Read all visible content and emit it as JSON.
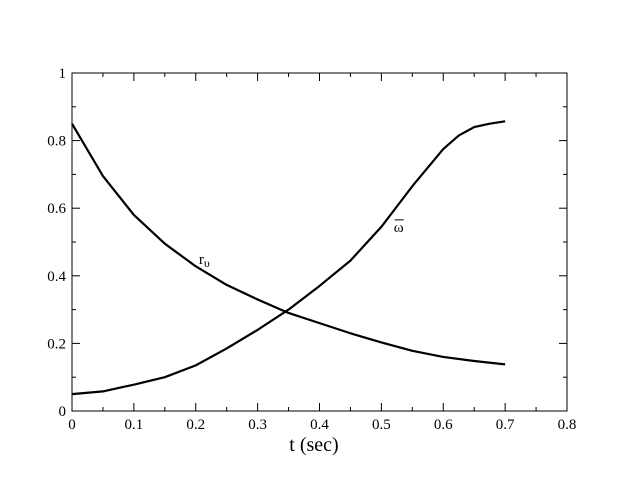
{
  "chart_data": {
    "type": "line",
    "xlabel": "t  (sec)",
    "ylabel": "",
    "xlim": [
      0,
      0.8
    ],
    "ylim": [
      0,
      1
    ],
    "xticks": [
      "0",
      "0.1",
      "0.2",
      "0.3",
      "0.4",
      "0.5",
      "0.6",
      "0.7",
      "0.8"
    ],
    "yticks": [
      "0",
      "0.2",
      "0.4",
      "0.6",
      "0.8",
      "1"
    ],
    "grid": false,
    "series": [
      {
        "x": [
          0,
          0.05,
          0.1,
          0.15,
          0.2,
          0.25,
          0.3,
          0.35,
          0.4,
          0.45,
          0.5,
          0.55,
          0.6,
          0.65,
          0.7
        ],
        "y": [
          0.85,
          0.695,
          0.58,
          0.495,
          0.428,
          0.373,
          0.33,
          0.29,
          0.26,
          0.23,
          0.203,
          0.178,
          0.16,
          0.148,
          0.138
        ]
      },
      {
        "x": [
          0,
          0.05,
          0.1,
          0.15,
          0.2,
          0.25,
          0.3,
          0.35,
          0.4,
          0.45,
          0.5,
          0.55,
          0.6,
          0.625,
          0.65,
          0.675,
          0.7
        ],
        "y": [
          0.05,
          0.058,
          0.078,
          0.1,
          0.135,
          0.185,
          0.24,
          0.3,
          0.37,
          0.445,
          0.545,
          0.665,
          0.775,
          0.815,
          0.84,
          0.85,
          0.857
        ]
      }
    ],
    "annotations": [
      {
        "text": "r",
        "sub": "υ",
        "x": 0.205,
        "y": 0.435
      },
      {
        "text": "ω",
        "x": 0.52,
        "y": 0.53,
        "overbar": true
      }
    ]
  }
}
